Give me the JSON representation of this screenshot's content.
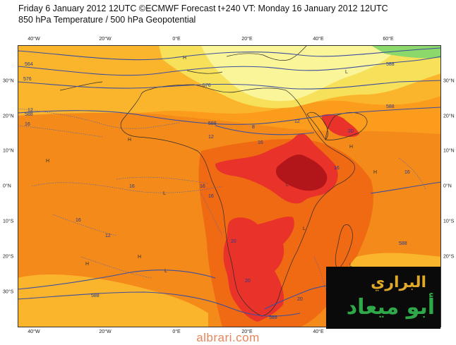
{
  "header": {
    "line1": "Friday 6 January 2012 12UTC ©ECMWF Forecast t+240 VT: Monday 16 January 2012 12UTC",
    "line2": "850 hPa Temperature / 500 hPa Geopotential"
  },
  "axes": {
    "longitudes": [
      "40°W",
      "20°W",
      "0°E",
      "20°E",
      "40°E",
      "60°E"
    ],
    "latitudes": [
      "30°N",
      "20°N",
      "10°N",
      "0°N",
      "10°S",
      "20°S",
      "30°S"
    ]
  },
  "contours": {
    "geopotential_labels": [
      "564",
      "576",
      "576",
      "588",
      "588",
      "588",
      "588",
      "588",
      "588",
      "588"
    ],
    "temperature_labels": [
      "12",
      "16",
      "12",
      "8",
      "16",
      "16",
      "16",
      "16",
      "16",
      "16",
      "20",
      "20",
      "20",
      "20",
      "12",
      "12",
      "16"
    ],
    "pressure_marks": [
      "H",
      "H",
      "H",
      "H",
      "H",
      "H",
      "H",
      "L",
      "L",
      "L",
      "L",
      "L",
      "L",
      "L"
    ]
  },
  "colors": {
    "ocean_base": "#fb9c1c",
    "light_yellow": "#fbf59a",
    "yellow": "#f7e05a",
    "light_orange": "#fbb52c",
    "orange": "#f38a1a",
    "dark_orange": "#ef6a12",
    "red": "#e8322a",
    "dark_red": "#b3161a",
    "green": "#8dd86a",
    "contour": "#3d4f9e"
  },
  "logo": {
    "line1": "البراري",
    "line2": "أبو ميعاد"
  },
  "footer": "albrari.com"
}
